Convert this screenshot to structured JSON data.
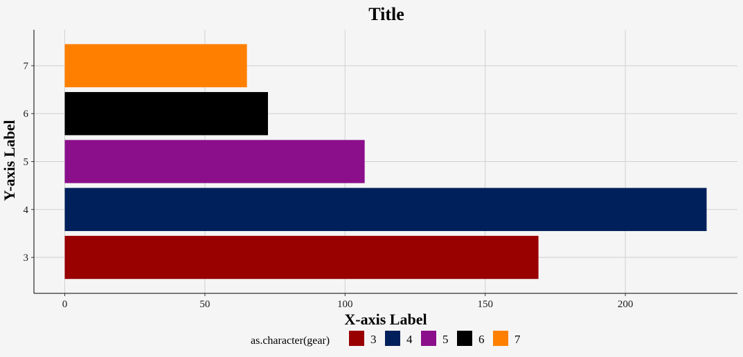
{
  "chart_data": {
    "type": "bar",
    "orientation": "horizontal",
    "title": "Title",
    "xlabel": "X-axis Label",
    "ylabel": "Y-axis Label",
    "categories": [
      "3",
      "4",
      "5",
      "6",
      "7"
    ],
    "values": [
      169,
      229,
      107,
      72.5,
      65
    ],
    "colors": [
      "#990000",
      "#00205b",
      "#8b0f8b",
      "#000000",
      "#ff8000"
    ],
    "xlim": [
      -11,
      240
    ],
    "ylim": [
      2.25,
      7.75
    ],
    "x_ticks": [
      0,
      50,
      100,
      150,
      200
    ],
    "y_ticks": [
      3,
      4,
      5,
      6,
      7
    ],
    "grid": true,
    "legend": {
      "title": "as.character(gear)",
      "position": "bottom",
      "items": [
        {
          "label": "3",
          "color": "#990000"
        },
        {
          "label": "4",
          "color": "#00205b"
        },
        {
          "label": "5",
          "color": "#8b0f8b"
        },
        {
          "label": "6",
          "color": "#000000"
        },
        {
          "label": "7",
          "color": "#ff8000"
        }
      ]
    }
  }
}
